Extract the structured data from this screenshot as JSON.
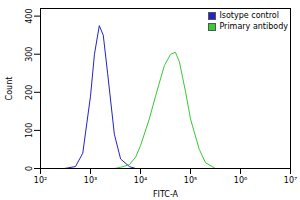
{
  "chart_data": {
    "type": "line",
    "x_label": "FITC-A",
    "y_label": "Count",
    "log": "x",
    "grid": false,
    "legend": "top-right",
    "x": [
      300,
      500,
      700,
      1000,
      1200,
      1500,
      1800,
      2200,
      3000,
      4000,
      6000,
      8000,
      10000,
      15000,
      20000,
      30000,
      40000,
      50000,
      60000,
      80000,
      100000,
      150000,
      200000,
      300000
    ],
    "series": [
      {
        "name": "Isotype control",
        "color": "#2222cc",
        "values": [
          0,
          5,
          40,
          190,
          300,
          375,
          350,
          250,
          90,
          25,
          5,
          0,
          0,
          null,
          null,
          null,
          null,
          null,
          null,
          null,
          null,
          null,
          null,
          null
        ]
      },
      {
        "name": "Primary antibody",
        "color": "#33cc33",
        "values": [
          null,
          null,
          null,
          null,
          null,
          null,
          null,
          null,
          0,
          3,
          10,
          30,
          60,
          130,
          190,
          270,
          300,
          305,
          280,
          200,
          130,
          50,
          15,
          2
        ]
      }
    ],
    "xlim": [
      100,
      10000000
    ],
    "xticks": [
      {
        "value": 100,
        "label": "10²"
      },
      {
        "value": 1000,
        "label": "10³"
      },
      {
        "value": 10000,
        "label": "10⁴"
      },
      {
        "value": 100000,
        "label": "10⁵"
      },
      {
        "value": 1000000,
        "label": "10⁶"
      },
      {
        "value": 10000000,
        "label": "10⁷"
      }
    ],
    "ylim": [
      0,
      420
    ],
    "yticks": [
      0,
      100,
      200,
      300,
      400
    ]
  }
}
